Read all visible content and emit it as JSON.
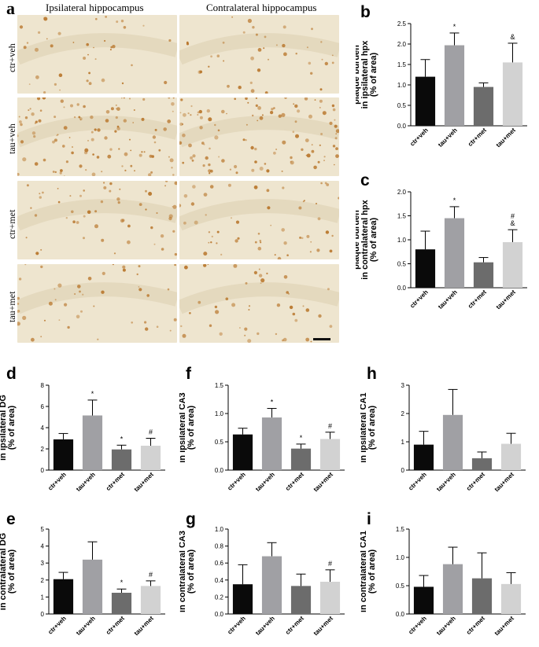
{
  "panel_a": {
    "letter": "a",
    "col_titles": [
      "Ipsilateral hippocampus",
      "Contralateral hippocampus"
    ],
    "row_labels": [
      "ctr+veh",
      "tau+veh",
      "ctr+met",
      "tau+met"
    ]
  },
  "colors": {
    "ctr_veh": "#0a0a0a",
    "tau_veh": "#a0a0a4",
    "ctr_met": "#6c6c6c",
    "tau_met": "#d2d2d2",
    "tissue": "#eee5cf",
    "stain": "#b9772d"
  },
  "chart_data": [
    {
      "id": "b",
      "letter": "b",
      "type": "bar",
      "ylabel_lines": [
        "plaque burden",
        "in ipsilateral hpx",
        "(% of area)"
      ],
      "categories": [
        "ctr+veh",
        "tau+veh",
        "ctr+met",
        "tau+met"
      ],
      "values": [
        1.2,
        1.97,
        0.95,
        1.55
      ],
      "errors": [
        0.42,
        0.3,
        0.1,
        0.47
      ],
      "annotations": [
        "",
        "*",
        "",
        "&"
      ],
      "ylim": [
        0,
        2.5
      ],
      "yticks": [
        "0.0",
        "0.5",
        "1.0",
        "1.5",
        "2.0",
        "2.5"
      ]
    },
    {
      "id": "c",
      "letter": "c",
      "type": "bar",
      "ylabel_lines": [
        "plaque burden",
        "in contralateral hpx",
        "(% of area)"
      ],
      "categories": [
        "ctr+veh",
        "tau+veh",
        "ctr+met",
        "tau+met"
      ],
      "values": [
        0.8,
        1.45,
        0.53,
        0.95
      ],
      "errors": [
        0.38,
        0.24,
        0.1,
        0.26
      ],
      "annotations": [
        "",
        "*",
        "",
        "#\n&"
      ],
      "ylim": [
        0,
        2.0
      ],
      "yticks": [
        "0.0",
        "0.5",
        "1.0",
        "1.5",
        "2.0"
      ]
    },
    {
      "id": "d",
      "letter": "d",
      "type": "bar",
      "ylabel_lines": [
        "plaque burden",
        "in ipsilateral DG",
        "(% of area)"
      ],
      "categories": [
        "ctr+veh",
        "tau+veh",
        "ctr+met",
        "tau+met"
      ],
      "values": [
        2.9,
        5.15,
        1.95,
        2.3
      ],
      "errors": [
        0.55,
        1.45,
        0.4,
        0.7
      ],
      "annotations": [
        "",
        "*",
        "*",
        "#"
      ],
      "ylim": [
        0,
        8
      ],
      "yticks": [
        "0",
        "2",
        "4",
        "6",
        "8"
      ]
    },
    {
      "id": "f",
      "letter": "f",
      "type": "bar",
      "ylabel_lines": [
        "plaque burden",
        "in ipsilateral CA3",
        "(% of area)"
      ],
      "categories": [
        "ctr+veh",
        "tau+veh",
        "ctr+met",
        "tau+met"
      ],
      "values": [
        0.63,
        0.93,
        0.38,
        0.55
      ],
      "errors": [
        0.11,
        0.16,
        0.08,
        0.12
      ],
      "annotations": [
        "",
        "*",
        "*",
        "#"
      ],
      "ylim": [
        0,
        1.5
      ],
      "yticks": [
        "0.0",
        "0.5",
        "1.0",
        "1.5"
      ]
    },
    {
      "id": "h",
      "letter": "h",
      "type": "bar",
      "ylabel_lines": [
        "plaque burden",
        "in ipsilateral CA1",
        "(% of area)"
      ],
      "categories": [
        "ctr+veh",
        "tau+veh",
        "ctr+met",
        "tau+met"
      ],
      "values": [
        0.9,
        1.95,
        0.42,
        0.93
      ],
      "errors": [
        0.47,
        0.9,
        0.22,
        0.37
      ],
      "annotations": [
        "",
        "",
        "",
        ""
      ],
      "ylim": [
        0,
        3
      ],
      "yticks": [
        "0",
        "1",
        "2",
        "3"
      ]
    },
    {
      "id": "e",
      "letter": "e",
      "type": "bar",
      "ylabel_lines": [
        "plaque burden",
        "in contralateral DG",
        "(% of area)"
      ],
      "categories": [
        "ctr+veh",
        "tau+veh",
        "ctr+met",
        "tau+met"
      ],
      "values": [
        2.05,
        3.2,
        1.25,
        1.65
      ],
      "errors": [
        0.4,
        1.05,
        0.22,
        0.3
      ],
      "annotations": [
        "",
        "",
        "*",
        "#"
      ],
      "ylim": [
        0,
        5
      ],
      "yticks": [
        "0",
        "1",
        "2",
        "3",
        "4",
        "5"
      ]
    },
    {
      "id": "g",
      "letter": "g",
      "type": "bar",
      "ylabel_lines": [
        "plaque burden",
        "in contralateral CA3",
        "(% of area)"
      ],
      "categories": [
        "ctr+veh",
        "tau+veh",
        "ctr+met",
        "tau+met"
      ],
      "values": [
        0.35,
        0.68,
        0.33,
        0.38
      ],
      "errors": [
        0.23,
        0.16,
        0.14,
        0.14
      ],
      "annotations": [
        "",
        "",
        "",
        "#"
      ],
      "ylim": [
        0,
        1.0
      ],
      "yticks": [
        "0.0",
        "0.2",
        "0.4",
        "0.6",
        "0.8",
        "1.0"
      ]
    },
    {
      "id": "i",
      "letter": "i",
      "type": "bar",
      "ylabel_lines": [
        "plaque burden",
        "in contralateral CA1",
        "(% of area)"
      ],
      "categories": [
        "ctr+veh",
        "tau+veh",
        "ctr+met",
        "tau+met"
      ],
      "values": [
        0.48,
        0.88,
        0.63,
        0.53
      ],
      "errors": [
        0.2,
        0.3,
        0.45,
        0.2
      ],
      "annotations": [
        "",
        "",
        "",
        ""
      ],
      "ylim": [
        0,
        1.5
      ],
      "yticks": [
        "0.0",
        "0.5",
        "1.0",
        "1.5"
      ]
    }
  ]
}
